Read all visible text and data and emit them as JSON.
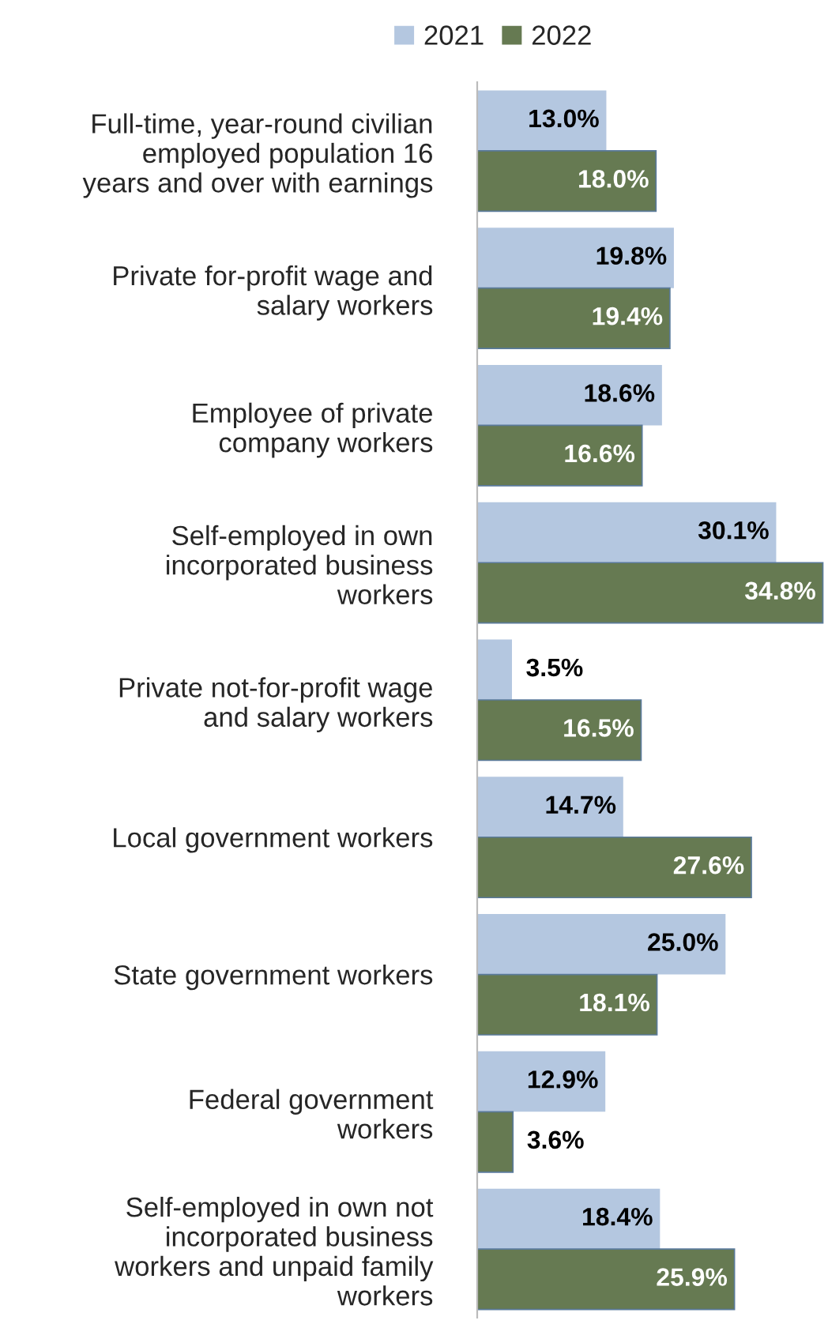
{
  "chart_data": {
    "type": "bar",
    "orientation": "horizontal",
    "legend": "top",
    "categories": [
      "Full-time, year-round civilian\nemployed population 16\nyears and over with earnings",
      "Private for-profit wage and\nsalary workers",
      "Employee of private\ncompany workers",
      "Self-employed in own\nincorporated business\nworkers",
      "Private not-for-profit wage\nand salary workers",
      "Local government workers",
      "State government workers",
      "Federal government\nworkers",
      "Self-employed in own not\nincorporated business\nworkers and unpaid family\nworkers"
    ],
    "series": [
      {
        "name": "2021",
        "color": "#b4c7e0",
        "values": [
          13.0,
          19.8,
          18.6,
          30.1,
          3.5,
          14.7,
          25.0,
          12.9,
          18.4
        ],
        "value_labels": [
          "13.0%",
          "19.8%",
          "18.6%",
          "30.1%",
          "3.5%",
          "14.7%",
          "25.0%",
          "12.9%",
          "18.4%"
        ]
      },
      {
        "name": "2022",
        "color": "#667a52",
        "values": [
          18.0,
          19.4,
          16.6,
          34.8,
          16.5,
          27.6,
          18.1,
          3.6,
          25.9
        ],
        "value_labels": [
          "18.0%",
          "19.4%",
          "16.6%",
          "34.8%",
          "16.5%",
          "27.6%",
          "18.1%",
          "3.6%",
          "25.9%"
        ]
      }
    ]
  }
}
